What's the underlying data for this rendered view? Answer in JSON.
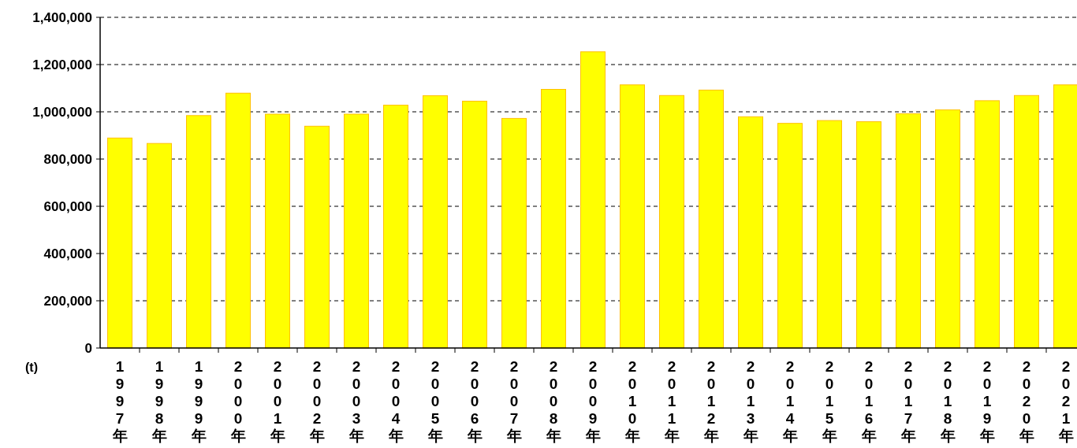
{
  "chart_data": {
    "type": "bar",
    "ylabel": "(t)",
    "categories": [
      "1997年",
      "1998年",
      "1999年",
      "2000年",
      "2001年",
      "2002年",
      "2003年",
      "2004年",
      "2005年",
      "2006年",
      "2007年",
      "2008年",
      "2009年",
      "2010年",
      "2011年",
      "2012年",
      "2013年",
      "2014年",
      "2015年",
      "2016年",
      "2017年",
      "2018年",
      "2019年",
      "2020年",
      "2021年"
    ],
    "values": [
      889000,
      866000,
      984000,
      1079000,
      990000,
      939000,
      990000,
      1028000,
      1068000,
      1045000,
      972000,
      1095000,
      1254000,
      1114000,
      1069000,
      1092000,
      979000,
      951000,
      963000,
      958000,
      992000,
      1008000,
      1047000,
      1069000,
      1114000
    ],
    "color": "#ffff00",
    "ylim": [
      0,
      1400000
    ],
    "yticks": [
      0,
      {
        "value": 200000,
        "label": "200,000"
      },
      {
        "value": 400000,
        "label": "400,000"
      },
      {
        "value": 600000,
        "label": "600,000"
      },
      {
        "value": 800000,
        "label": "800,000"
      },
      {
        "value": 1000000,
        "label": "1,000,000"
      },
      {
        "value": 1200000,
        "label": "1,200,000"
      },
      {
        "value": 1400000,
        "label": "1,400,000"
      }
    ],
    "grid": "y"
  }
}
